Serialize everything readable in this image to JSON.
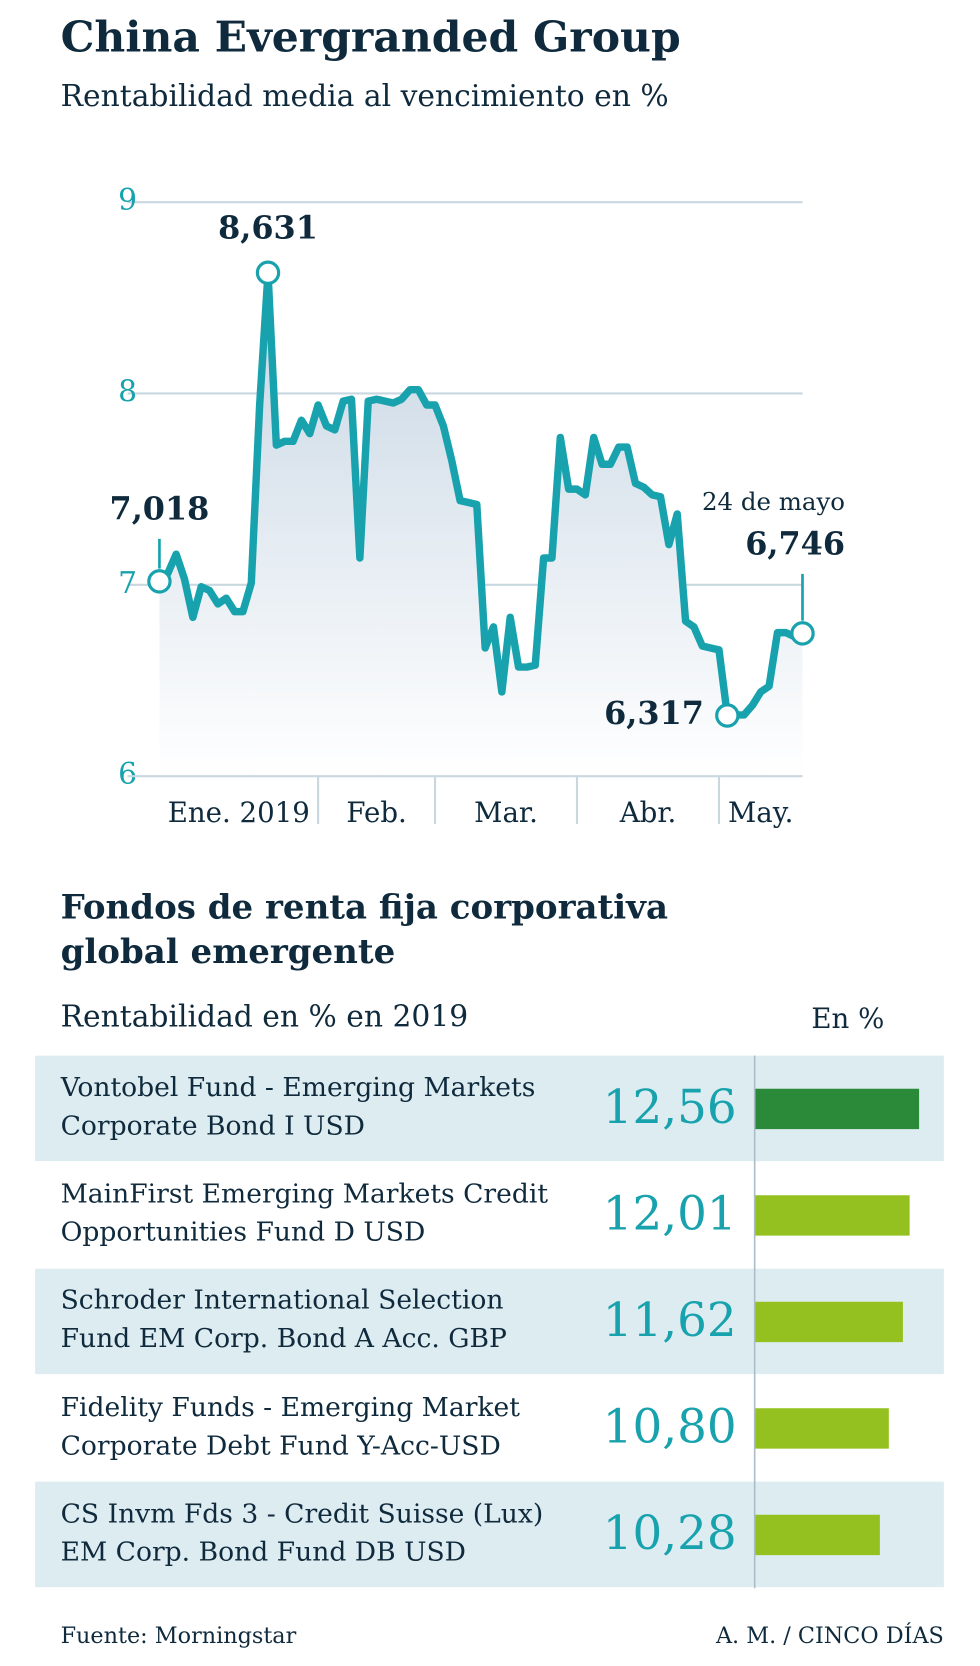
{
  "chart_data": [
    {
      "type": "line",
      "title": "China Evergranded Group",
      "subtitle": "Rentabilidad media al vencimiento en %",
      "categories": [
        "Ene. 2019",
        null,
        null,
        null,
        null,
        null,
        null,
        null,
        null,
        null,
        null,
        null,
        null,
        null,
        null,
        null,
        null,
        null,
        null,
        "Feb.",
        null,
        null,
        null,
        null,
        null,
        null,
        null,
        null,
        null,
        null,
        null,
        null,
        null,
        "Mar.",
        null,
        null,
        null,
        null,
        null,
        null,
        null,
        null,
        null,
        null,
        null,
        null,
        null,
        null,
        null,
        null,
        "Abr.",
        null,
        null,
        null,
        null,
        null,
        null,
        null,
        null,
        null,
        null,
        null,
        null,
        null,
        null,
        null,
        null,
        "May.",
        null,
        null,
        null,
        null,
        null,
        null,
        null,
        null,
        null,
        null
      ],
      "series": [
        {
          "name": null,
          "color": "#17a2ad",
          "values": [
            7.018,
            7.06,
            7.16,
            7.03,
            6.83,
            6.99,
            6.97,
            6.9,
            6.93,
            6.86,
            6.86,
            7.01,
            7.94,
            8.631,
            7.73,
            7.75,
            7.75,
            7.86,
            7.79,
            7.94,
            7.83,
            7.81,
            7.96,
            7.97,
            7.14,
            7.96,
            7.97,
            7.96,
            7.95,
            7.97,
            8.02,
            8.02,
            7.94,
            7.94,
            7.83,
            7.65,
            7.44,
            7.43,
            7.42,
            6.67,
            6.78,
            6.44,
            6.83,
            6.57,
            6.57,
            6.58,
            7.14,
            7.14,
            7.77,
            7.5,
            7.5,
            7.47,
            7.77,
            7.63,
            7.63,
            7.72,
            7.72,
            7.53,
            7.51,
            7.47,
            7.46,
            7.21,
            7.37,
            6.81,
            6.78,
            6.68,
            6.67,
            6.66,
            6.317,
            6.32,
            6.32,
            6.37,
            6.44,
            6.47,
            6.75,
            6.75,
            6.73,
            6.746
          ],
          "value_labels": [
            "7,018",
            null,
            null,
            null,
            null,
            null,
            null,
            null,
            null,
            null,
            null,
            null,
            null,
            "8,631",
            null,
            null,
            null,
            null,
            null,
            null,
            null,
            null,
            null,
            null,
            null,
            null,
            null,
            null,
            null,
            null,
            null,
            null,
            null,
            null,
            null,
            null,
            null,
            null,
            null,
            null,
            null,
            null,
            null,
            null,
            null,
            null,
            null,
            null,
            null,
            null,
            null,
            null,
            null,
            null,
            null,
            null,
            null,
            null,
            null,
            null,
            null,
            null,
            null,
            null,
            null,
            null,
            null,
            null,
            "6,317",
            null,
            null,
            null,
            null,
            null,
            null,
            null,
            null,
            "6,746"
          ]
        }
      ],
      "annotation": "24 de mayo",
      "ylim": [
        6,
        9
      ],
      "yticks": [
        6,
        7,
        8,
        9
      ],
      "grid": true
    },
    {
      "type": "barh",
      "title": "Fondos de renta fija corporativa\nglobal emergente",
      "subtitle": "Rentabilidad en % en 2019",
      "axis_label": "En %",
      "categories": [
        "Vontobel Fund - Emerging Markets\nCorporate Bond I USD",
        "MainFirst Emerging Markets Credit\nOpportunities Fund D USD",
        "Schroder International Selection\nFund EM Corp. Bond A Acc. GBP",
        "Fidelity Funds - Emerging Market\nCorporate Debt Fund Y-Acc-USD",
        "CS Invm Fds 3 - Credit Suisse (Lux)\nEM Corp. Bond Fund DB USD"
      ],
      "values": [
        12.56,
        12.01,
        11.62,
        10.8,
        10.28
      ],
      "value_labels": [
        "12,56",
        "12,01",
        "11,62",
        "10,80",
        "10,28"
      ],
      "colors": [
        "#2a8a3a",
        "#94c11f",
        "#94c11f",
        "#94c11f",
        "#94c11f"
      ],
      "xlim": [
        3,
        14
      ]
    },
    {
      "type": "footer",
      "source": "Fuente: Morningstar",
      "credit": "A. M. / CINCO DÍAS"
    }
  ]
}
